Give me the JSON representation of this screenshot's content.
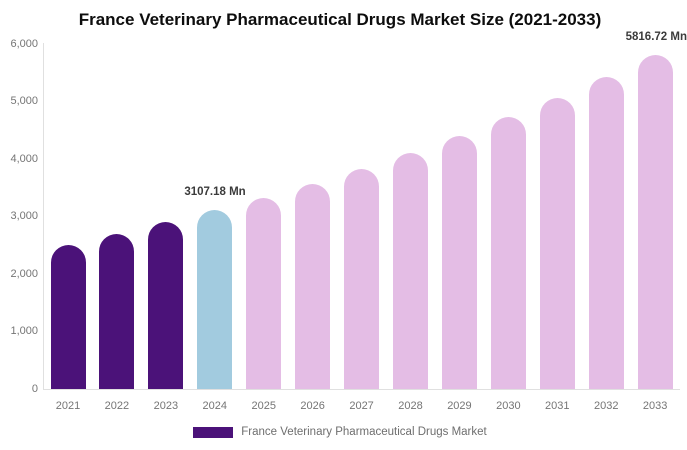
{
  "title": "France Veterinary Pharmaceutical Drugs Market Size (2021-2033)",
  "chart_data": {
    "type": "bar",
    "title": "France Veterinary Pharmaceutical Drugs Market Size (2021-2033)",
    "unit": "Mn",
    "categories": [
      "2021",
      "2022",
      "2023",
      "2024",
      "2025",
      "2026",
      "2027",
      "2028",
      "2029",
      "2030",
      "2031",
      "2032",
      "2033"
    ],
    "values": [
      2510,
      2700,
      2900,
      3107.18,
      3330,
      3570,
      3830,
      4105,
      4400,
      4725,
      5060,
      5425,
      5816.72
    ],
    "segments": [
      "historical",
      "historical",
      "historical",
      "base",
      "forecast",
      "forecast",
      "forecast",
      "forecast",
      "forecast",
      "forecast",
      "forecast",
      "forecast",
      "forecast"
    ],
    "ylim": [
      0,
      6000
    ],
    "y_ticks": [
      "6,000",
      "5,000",
      "4,000",
      "3,000",
      "2,000",
      "1,000",
      "0"
    ],
    "grid": false,
    "legend_position": "bottom",
    "annotations": [
      {
        "category": "2024",
        "text": "3107.18 Mn"
      },
      {
        "category": "2033",
        "text": "5816.72 Mn",
        "position": "top-right"
      }
    ]
  },
  "palette": {
    "historical": "#4B1279",
    "base": "#A2CBDF",
    "forecast": "#E4BDE5",
    "title_text": "#0d0d0d",
    "axis_text": "#757575",
    "axis_line": "#e0e0e0",
    "annotation_text": "#3b3b3b"
  },
  "annotations": {
    "bar_2024_label": "3107.18 Mn",
    "bar_2033_label": "5816.72 Mn"
  },
  "legend": {
    "label": "France Veterinary Pharmaceutical Drugs Market",
    "swatch_color": "#4B1279"
  }
}
